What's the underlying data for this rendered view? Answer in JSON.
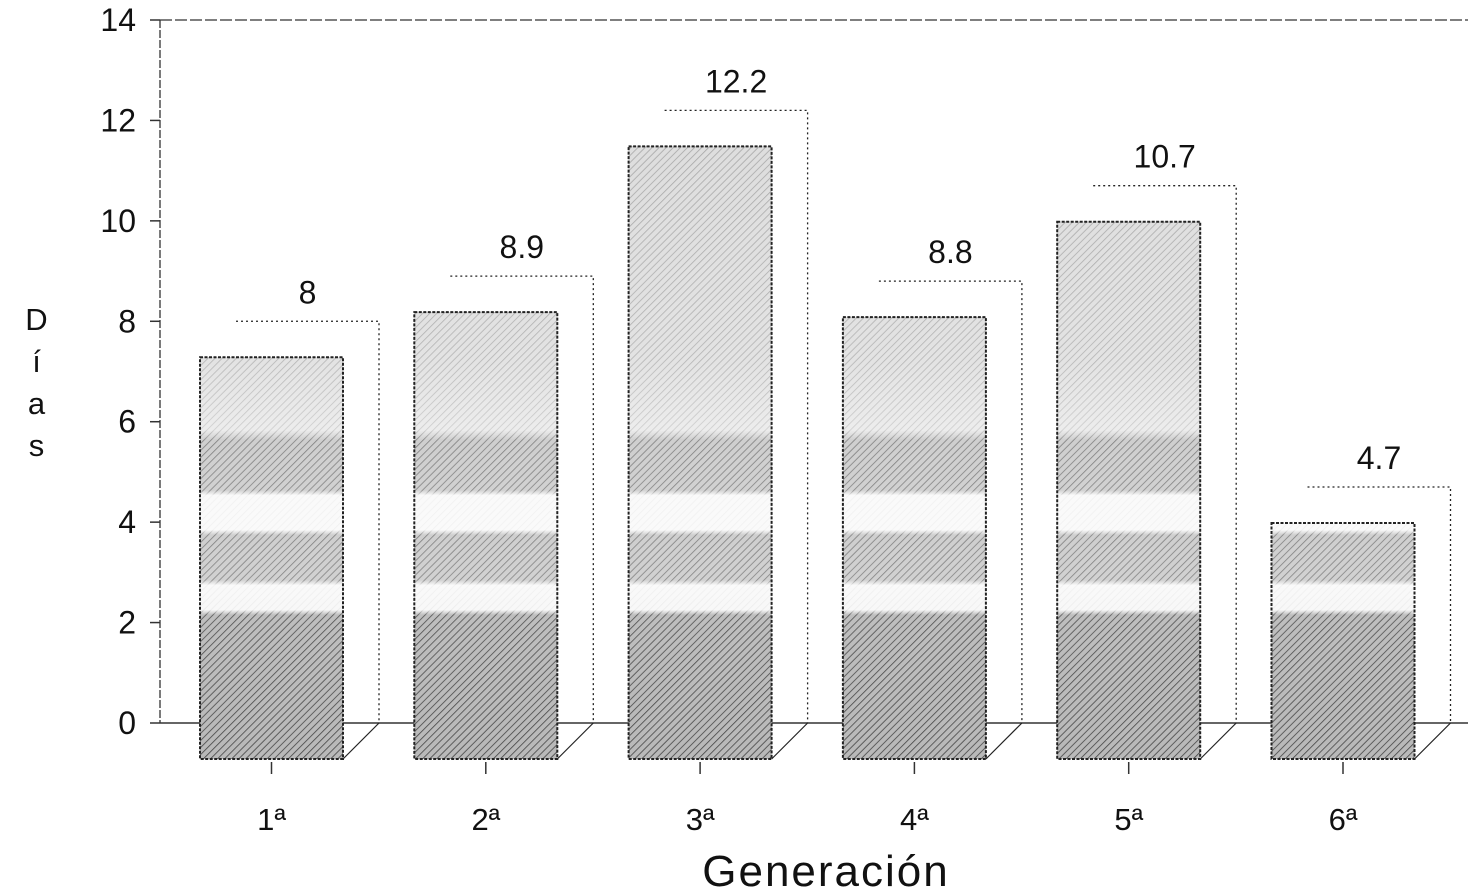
{
  "chart_data": {
    "type": "bar",
    "style": "3d",
    "categories": [
      "1ª",
      "2ª",
      "3ª",
      "4ª",
      "5ª",
      "6ª"
    ],
    "values": [
      8,
      8.9,
      12.2,
      8.8,
      10.7,
      4.7
    ],
    "xlabel": "Generación",
    "ylabel": "Días",
    "ylim": [
      0,
      14
    ],
    "yticks": [
      0,
      2,
      4,
      6,
      8,
      10,
      12,
      14
    ],
    "grid": false,
    "legend": "none",
    "colors": {
      "bar_base": "#b5b5b5",
      "hatch": "#3a3a3a",
      "outline": "#222222",
      "axis": "#333333"
    }
  }
}
